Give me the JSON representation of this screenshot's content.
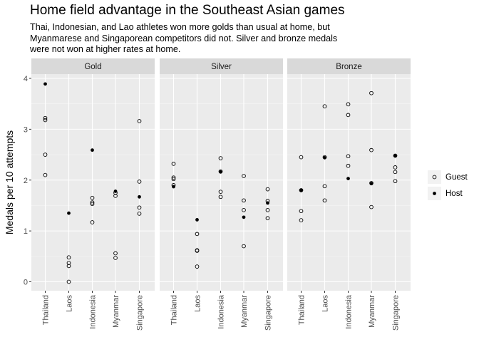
{
  "title": "Home field advantage in the Southeast Asian games",
  "subtitle_lines": [
    "Thai, Indonesian, and Lao athletes won more golds than usual at home, but",
    "Myanmarese and Singaporean competitors did not. Silver and bronze medals",
    "were not won at higher rates at home."
  ],
  "chart_data": {
    "type": "scatter",
    "ylabel": "Medals per 10 attempts",
    "xlabel": "",
    "ylim": [
      0,
      4
    ],
    "yticks": [
      0,
      1,
      2,
      3,
      4
    ],
    "categories": [
      "Thailand",
      "Laos",
      "Indonesia",
      "Myanmar",
      "Singapore"
    ],
    "facets": [
      "Gold",
      "Silver",
      "Bronze"
    ],
    "legend": {
      "position": "right",
      "entries": [
        "Guest",
        "Host"
      ]
    },
    "grid": true,
    "panels": [
      {
        "facet": "Gold",
        "guest": {
          "Thailand": [
            3.22,
            3.18,
            2.5,
            2.1
          ],
          "Laos": [
            0.48,
            0.37,
            0.31,
            0.0
          ],
          "Indonesia": [
            1.65,
            1.56,
            1.53,
            1.17
          ],
          "Myanmar": [
            1.75,
            1.69,
            0.56,
            0.47
          ],
          "Singapore": [
            3.16,
            1.97,
            1.46,
            1.34
          ]
        },
        "host": {
          "Thailand": 3.89,
          "Laos": 1.35,
          "Indonesia": 2.59,
          "Myanmar": 1.78,
          "Singapore": 1.67
        }
      },
      {
        "facet": "Silver",
        "guest": {
          "Thailand": [
            2.32,
            2.05,
            2.02,
            1.9
          ],
          "Laos": [
            0.94,
            0.62,
            0.61,
            0.3
          ],
          "Indonesia": [
            2.43,
            2.17,
            1.77,
            1.67
          ],
          "Myanmar": [
            2.08,
            1.6,
            1.41,
            0.7
          ],
          "Singapore": [
            1.82,
            1.59,
            1.41,
            1.25
          ]
        },
        "host": {
          "Thailand": 1.87,
          "Laos": 1.22,
          "Indonesia": 2.16,
          "Myanmar": 1.27,
          "Singapore": 1.55
        }
      },
      {
        "facet": "Bronze",
        "guest": {
          "Thailand": [
            2.45,
            1.8,
            1.39,
            1.21
          ],
          "Laos": [
            3.45,
            2.45,
            1.88,
            1.6
          ],
          "Indonesia": [
            3.49,
            3.28,
            2.47,
            2.28
          ],
          "Myanmar": [
            3.71,
            2.59,
            1.94,
            1.47
          ],
          "Singapore": [
            2.48,
            2.25,
            2.16,
            1.98
          ]
        },
        "host": {
          "Thailand": 1.8,
          "Laos": 2.44,
          "Indonesia": 2.03,
          "Myanmar": 1.93,
          "Singapore": 2.48
        }
      }
    ]
  }
}
